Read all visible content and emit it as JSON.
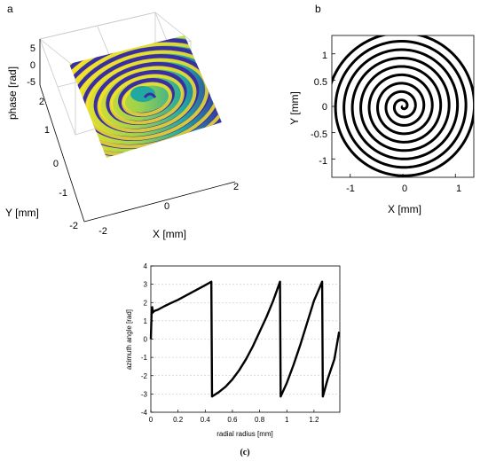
{
  "figure": {
    "panel_a_label": "a",
    "panel_b_label": "b",
    "panel_c_label": "(c)"
  },
  "chart_data": [
    {
      "panel": "a",
      "type": "heatmap",
      "description_surface": "3D phase surface of a spiral phase plate",
      "zlabel": "phase [rad]",
      "xlabel": "X [mm]",
      "ylabel": "Y [mm]",
      "z_ticks": [
        "5",
        "0",
        "-5"
      ],
      "y_ticks": [
        "2",
        "1",
        "0",
        "-1",
        "-2"
      ],
      "x_ticks": [
        "-2",
        "0",
        "2"
      ],
      "zlim": [
        -5,
        5
      ],
      "xlim": [
        -2,
        2
      ],
      "ylim": [
        -2,
        2
      ],
      "colors": {
        "low": "#3b2ea0",
        "mid": "#21a8a0",
        "high": "#f5e22a"
      }
    },
    {
      "panel": "b",
      "type": "line",
      "description_curve": "Archimedean spiral",
      "xlabel": "X [mm]",
      "ylabel": "Y [mm]",
      "x_ticks": [
        "-1",
        "0",
        "1"
      ],
      "y_ticks": [
        "1",
        "0.5",
        "0",
        "-0.5",
        "-1"
      ],
      "xlim": [
        -1.35,
        1.35
      ],
      "ylim": [
        -1.35,
        1.35
      ],
      "spiral_pitch_mm": 0.16,
      "spiral_turns": 9,
      "color": "#000000"
    },
    {
      "panel": "c",
      "type": "line",
      "xlabel": "radial radius [mm]",
      "ylabel": "azimuth angle [rad]",
      "xlim": [
        0,
        1.39
      ],
      "ylim": [
        -4,
        4
      ],
      "x_ticks": [
        "0",
        "0.2",
        "0.4",
        "0.6",
        "0.8",
        "1",
        "1.2"
      ],
      "x_tick_values": [
        0,
        0.2,
        0.4,
        0.6,
        0.8,
        1.0,
        1.2
      ],
      "y_ticks": [
        "4",
        "3",
        "2",
        "1",
        "0",
        "-1",
        "-2",
        "-3",
        "-4"
      ],
      "y_tick_values": [
        4,
        3,
        2,
        1,
        0,
        -1,
        -2,
        -3,
        -4
      ],
      "grid": "horizontal-dashed",
      "series": [
        {
          "x": [
            0.0,
            0.005,
            0.01,
            0.015,
            0.02,
            0.03,
            0.05,
            0.1,
            0.15,
            0.2,
            0.25,
            0.3,
            0.35,
            0.4,
            0.445,
            0.45,
            0.5,
            0.55,
            0.6,
            0.65,
            0.7,
            0.75,
            0.8,
            0.85,
            0.9,
            0.95,
            0.955,
            1.0,
            1.05,
            1.1,
            1.15,
            1.2,
            1.26,
            1.265,
            1.3,
            1.35,
            1.385
          ],
          "y": [
            0.0,
            1.3,
            1.75,
            1.45,
            1.5,
            1.55,
            1.6,
            1.8,
            1.98,
            2.15,
            2.35,
            2.55,
            2.75,
            2.95,
            3.14,
            -3.14,
            -2.9,
            -2.6,
            -2.2,
            -1.7,
            -1.1,
            -0.4,
            0.4,
            1.2,
            2.1,
            3.14,
            -3.14,
            -2.4,
            -1.4,
            -0.3,
            0.9,
            2.1,
            3.14,
            -3.14,
            -2.2,
            -1.1,
            0.4
          ]
        }
      ]
    }
  ]
}
